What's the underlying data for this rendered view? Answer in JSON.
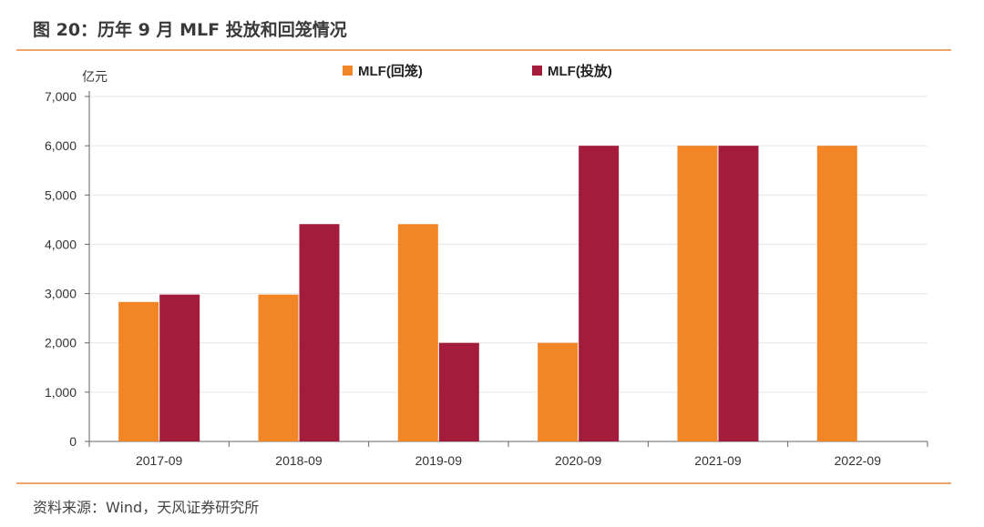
{
  "figure": {
    "title": "图 20：历年 9 月 MLF 投放和回笼情况",
    "source": "资料来源：Wind，天风证券研究所"
  },
  "colors": {
    "accent_rule": "#f0a36a",
    "series_return": "#f28526",
    "series_injection": "#a31c3c",
    "gridline": "#e6e6e6"
  },
  "chart_data": {
    "type": "bar",
    "unit_label": "亿元",
    "categories": [
      "2017-09",
      "2018-09",
      "2019-09",
      "2020-09",
      "2021-09",
      "2022-09"
    ],
    "series": [
      {
        "name": "MLF(回笼)",
        "color": "#f28526",
        "values": [
          2830,
          2980,
          4410,
          2000,
          6000,
          6000
        ]
      },
      {
        "name": "MLF(投放)",
        "color": "#a31c3c",
        "values": [
          2980,
          4410,
          2000,
          6000,
          6000,
          0
        ]
      }
    ],
    "ylim": [
      0,
      7000
    ],
    "yticks": [
      0,
      1000,
      2000,
      3000,
      4000,
      5000,
      6000,
      7000
    ],
    "ytick_labels": [
      "0",
      "1,000",
      "2,000",
      "3,000",
      "4,000",
      "5,000",
      "6,000",
      "7,000"
    ],
    "grid": true,
    "legend_position": "top-center"
  }
}
